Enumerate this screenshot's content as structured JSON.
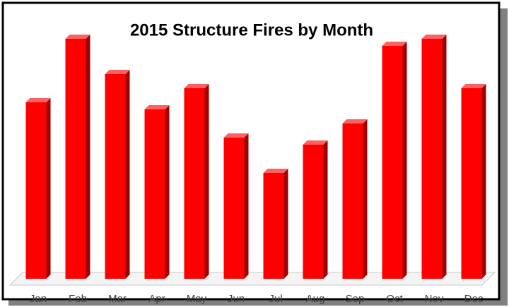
{
  "chart_data": {
    "type": "bar",
    "title": "2015 Structure Fires by Month",
    "categories": [
      "Jan",
      "Feb",
      "Mar",
      "Apr",
      "May",
      "Jun",
      "Jul",
      "Aug",
      "Sep",
      "Oct",
      "Nov",
      "Dec"
    ],
    "values": [
      25,
      34,
      29,
      24,
      27,
      20,
      15,
      19,
      22,
      33,
      34,
      27
    ],
    "color": "#ff0000",
    "ylim": [
      0,
      38
    ]
  }
}
